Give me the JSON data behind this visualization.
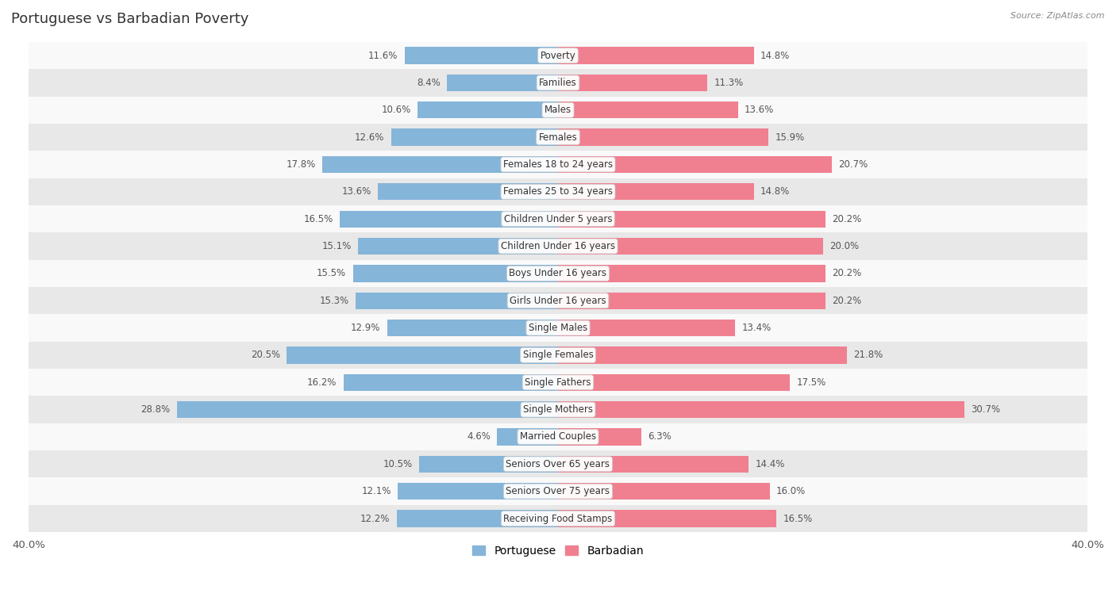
{
  "title": "Portuguese vs Barbadian Poverty",
  "source": "Source: ZipAtlas.com",
  "categories": [
    "Poverty",
    "Families",
    "Males",
    "Females",
    "Females 18 to 24 years",
    "Females 25 to 34 years",
    "Children Under 5 years",
    "Children Under 16 years",
    "Boys Under 16 years",
    "Girls Under 16 years",
    "Single Males",
    "Single Females",
    "Single Fathers",
    "Single Mothers",
    "Married Couples",
    "Seniors Over 65 years",
    "Seniors Over 75 years",
    "Receiving Food Stamps"
  ],
  "portuguese": [
    11.6,
    8.4,
    10.6,
    12.6,
    17.8,
    13.6,
    16.5,
    15.1,
    15.5,
    15.3,
    12.9,
    20.5,
    16.2,
    28.8,
    4.6,
    10.5,
    12.1,
    12.2
  ],
  "barbadian": [
    14.8,
    11.3,
    13.6,
    15.9,
    20.7,
    14.8,
    20.2,
    20.0,
    20.2,
    20.2,
    13.4,
    21.8,
    17.5,
    30.7,
    6.3,
    14.4,
    16.0,
    16.5
  ],
  "max_val": 40.0,
  "portuguese_color": "#85b5d9",
  "barbadian_color": "#f08090",
  "bg_color": "#f2f2f2",
  "row_bg_light": "#f9f9f9",
  "row_bg_dark": "#e8e8e8",
  "bar_height": 0.62,
  "title_fontsize": 13,
  "label_fontsize": 8.5,
  "value_fontsize": 8.5,
  "axis_fontsize": 9.5
}
